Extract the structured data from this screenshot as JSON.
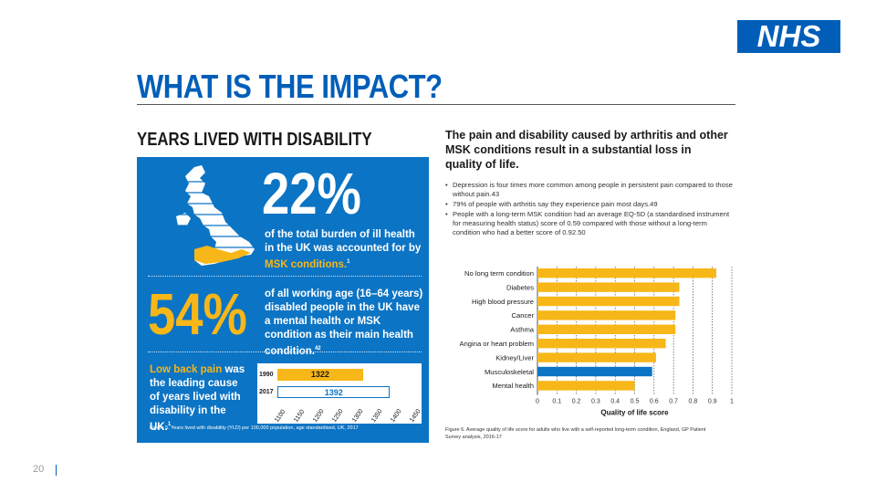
{
  "logo": {
    "text": "NHS",
    "color": "#005eb8"
  },
  "title": "WHAT IS THE IMPACT?",
  "section_heading": "YEARS LIVED WITH DISABILITY",
  "left_panel": {
    "stat1_value": "22%",
    "stat1_text_pre": "of the total burden of ill health in the UK was accounted for by ",
    "stat1_text_highlight": "MSK conditions.",
    "stat1_ref": "1",
    "stat2_value": "54%",
    "stat2_text": "of all working age (16–64 years) disabled people in the UK have a mental health or MSK condition as their main health condition.",
    "stat2_ref": "42",
    "lbp_highlight": "Low back pain",
    "lbp_text": " was the leading cause of years lived with disability in the UK.",
    "lbp_ref": "1",
    "mini_chart": {
      "years": [
        "1990",
        "2017"
      ],
      "values": [
        1322,
        1392
      ],
      "value_labels": [
        "1322",
        "1392"
      ],
      "ticks": [
        "1100",
        "1150",
        "1200",
        "1250",
        "1300",
        "1350",
        "1400",
        "1450"
      ],
      "xmin": 1100,
      "xmax": 1450,
      "colors": [
        "#f7b718",
        "#0c74c4"
      ]
    },
    "figure_caption": "Figure 5. Years lived with disability (YLD) per 100,000 population, age standardised, UK, 2017"
  },
  "right_panel": {
    "heading": "The pain and disability caused by arthritis and other MSK conditions result in a substantial loss in quality of life.",
    "bullets": [
      "Depression is four times more common among people in persistent pain compared to those without pain.43",
      "79% of people with arthritis say they experience pain most days.49",
      "People with a long-term MSK condition had an average EQ-5D (a standardised instrument for measuring health status) score of 0.59 compared with those without a long-term condition who had a better score of 0.92.50"
    ],
    "figure_caption": "Figure 6. Average quality of life score for adults who live with a self-reported long-term condition, England, GP Patient Survey analysis, 2016-17"
  },
  "chart_data": {
    "type": "bar",
    "orientation": "horizontal",
    "categories": [
      "No long term condition",
      "Diabetes",
      "High blood pressure",
      "Cancer",
      "Asthma",
      "Angina or heart problem",
      "Kidney/Liver",
      "Musculoskeletal",
      "Mental health"
    ],
    "values": [
      0.92,
      0.73,
      0.73,
      0.71,
      0.71,
      0.66,
      0.61,
      0.59,
      0.5
    ],
    "highlight_index": 7,
    "colors": {
      "default": "#f7b718",
      "highlight": "#0c74c4"
    },
    "xlabel": "Quality of life score",
    "ylabel": "",
    "xlim": [
      0,
      1
    ],
    "xticks": [
      "0",
      "0.1",
      "0.2",
      "0.3",
      "0.4",
      "0.5",
      "0.6",
      "0.7",
      "0.8",
      "0.9",
      "1"
    ],
    "grid": "vertical dotted",
    "legend": "none"
  },
  "footer": {
    "slide_number": "20"
  }
}
